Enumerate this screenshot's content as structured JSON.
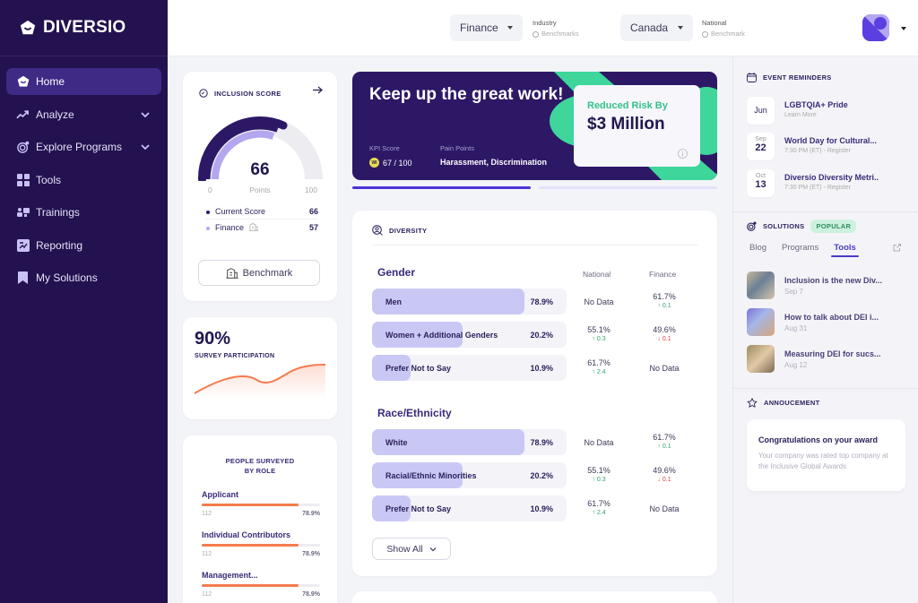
{
  "app": {
    "brand": "DIVERSIO"
  },
  "sidebar": {
    "items": [
      {
        "label": "Home",
        "icon": "home-icon",
        "active": true
      },
      {
        "label": "Analyze",
        "icon": "trend-icon",
        "expandable": true
      },
      {
        "label": "Explore Programs",
        "icon": "target-icon",
        "expandable": true
      },
      {
        "label": "Tools",
        "icon": "grid-icon"
      },
      {
        "label": "Trainings",
        "icon": "trainings-icon"
      },
      {
        "label": "Reporting",
        "icon": "reporting-icon"
      },
      {
        "label": "My Solutions",
        "icon": "bookmark-icon"
      }
    ]
  },
  "topbar": {
    "industry_select": {
      "value": "Finance",
      "label": "Industry",
      "sub": "Benchmarks"
    },
    "national_select": {
      "value": "Canada",
      "label": "National",
      "sub": "Benchmark"
    }
  },
  "inclusion": {
    "title": "INCLUSION SCORE",
    "score": "66",
    "unit": "Points",
    "min": "0",
    "max": "100",
    "legend": [
      {
        "label": "Current Score",
        "value": "66",
        "color": "#2d1866"
      },
      {
        "label": "Finance",
        "value": "57",
        "color": "#b5a6f0"
      }
    ],
    "benchmark_button": "Benchmark"
  },
  "participation": {
    "value": "90%",
    "label": "SURVEY PARTICIPATION"
  },
  "roles": {
    "title_line1": "PEOPLE SURVEYED",
    "title_line2": "BY ROLE",
    "items": [
      {
        "name": "Applicant",
        "count": "112",
        "pct": "78.9%"
      },
      {
        "name": "Individual Contributors",
        "count": "112",
        "pct": "78.9%"
      },
      {
        "name": "Management...",
        "count": "112",
        "pct": "78.9%"
      }
    ]
  },
  "banner": {
    "title": "Keep up the great work!",
    "kpi_label": "KPI Score",
    "kpi_value": "67 / 100",
    "kpi_badge": "WI",
    "pain_label": "Pain Points",
    "pain_value": "Harassment, Discrimination",
    "risk_label": "Reduced Risk By",
    "risk_value": "$3 Million"
  },
  "diversity": {
    "title": "DIVERSITY",
    "col_national": "National",
    "col_finance": "Finance",
    "gender": {
      "title": "Gender",
      "rows": [
        {
          "label": "Men",
          "pct": "78.9%",
          "fill": 170,
          "national": "No Data",
          "national_delta": "",
          "national_dir": "",
          "finance": "61.7%",
          "finance_delta": "↑ 0.1",
          "finance_dir": "up"
        },
        {
          "label": "Women + Additional Genders",
          "pct": "20.2%",
          "fill": 101,
          "national": "55.1%",
          "national_delta": "↑ 0.3",
          "national_dir": "up",
          "finance": "49.6%",
          "finance_delta": "↓ 0.1",
          "finance_dir": "down"
        },
        {
          "label": "Prefer Not to Say",
          "pct": "10.9%",
          "fill": 43,
          "national": "61.7%",
          "national_delta": "↑ 2.4",
          "national_dir": "up",
          "finance": "No Data",
          "finance_delta": "",
          "finance_dir": ""
        }
      ]
    },
    "race": {
      "title": "Race/Ethnicity",
      "rows": [
        {
          "label": "White",
          "pct": "78.9%",
          "fill": 170,
          "national": "No Data",
          "national_delta": "",
          "national_dir": "",
          "finance": "61.7%",
          "finance_delta": "↑ 0.1",
          "finance_dir": "up"
        },
        {
          "label": "Racial/Ethnic Minorities",
          "pct": "20.2%",
          "fill": 101,
          "national": "55.1%",
          "national_delta": "↑ 0.3",
          "national_dir": "up",
          "finance": "49.6%",
          "finance_delta": "↓ 0.1",
          "finance_dir": "down"
        },
        {
          "label": "Prefer Not to Say",
          "pct": "10.9%",
          "fill": 43,
          "national": "61.7%",
          "national_delta": "↑ 2.4",
          "national_dir": "up",
          "finance": "No Data",
          "finance_delta": "",
          "finance_dir": ""
        }
      ]
    },
    "show_all": "Show All"
  },
  "events": {
    "title": "EVENT REMINDERS",
    "items": [
      {
        "month": "Jun",
        "day": "",
        "title": "LGBTQIA+ Pride",
        "sub": "Learn More"
      },
      {
        "month": "Sep",
        "day": "22",
        "title": "World Day for Cultural...",
        "sub": "7:30 PM (ET) - Register"
      },
      {
        "month": "Oct",
        "day": "13",
        "title": "Diversio Diversity Metri..",
        "sub": "7:30 PM (ET) - Register"
      }
    ]
  },
  "solutions": {
    "title": "SOLUTIONS",
    "badge": "POPULAR",
    "tabs": [
      "Blog",
      "Programs",
      "Tools"
    ],
    "active_tab": "Tools",
    "items": [
      {
        "title": "Inclusion is the new Div...",
        "date": "Sep 7"
      },
      {
        "title": "How to talk about DEI i...",
        "date": "Aug 31"
      },
      {
        "title": "Measuring DEI for sucs...",
        "date": "Aug 12"
      }
    ]
  },
  "announcement": {
    "title": "ANNOUCEMENT",
    "heading": "Congratulations on your award",
    "body": "Your company was rated top company at the Inclusive Global Awards"
  }
}
